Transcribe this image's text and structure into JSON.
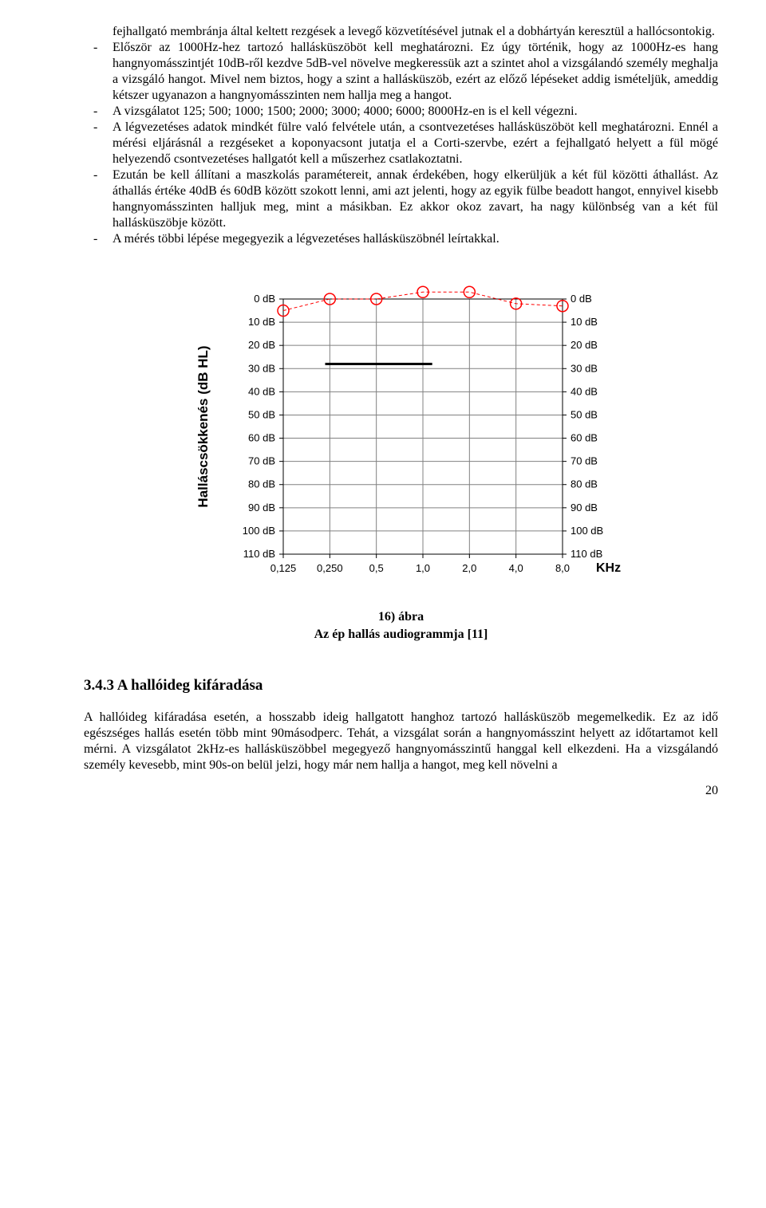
{
  "paragraphs": {
    "cont0": "fejhallgató membránja által keltett rezgések a levegő közvetítésével jutnak el a dobhártyán keresztül a hallócsontokig.",
    "b1": "Először az 1000Hz-hez tartozó hallásküszöböt kell meghatározni. Ez úgy történik, hogy az 1000Hz-es hang hangnyomásszintjét 10dB-ről kezdve 5dB-vel növelve megkeressük azt a szintet ahol a vizsgálandó személy meghalja a vizsgáló hangot. Mivel nem biztos, hogy a szint a hallásküszöb, ezért az előző lépéseket addig ismételjük, ameddig kétszer ugyanazon a hangnyomásszinten nem hallja meg a hangot.",
    "b2": "A vizsgálatot 125; 500; 1000; 1500; 2000; 3000; 4000; 6000; 8000Hz-en is el kell végezni.",
    "b3": "A légvezetéses adatok mindkét fülre való felvétele után, a csontvezetéses hallásküszöböt kell meghatározni. Ennél a mérési eljárásnál a rezgéseket a koponyacsont jutatja el a Corti-szervbe, ezért a fejhallgató helyett a fül mögé helyezendő csontvezetéses hallgatót kell a műszerhez csatlakoztatni.",
    "b4": "Ezután be kell állítani a maszkolás paramétereit, annak érdekében, hogy elkerüljük a két fül közötti áthallást. Az áthallás értéke 40dB és 60dB között szokott lenni, ami azt jelenti, hogy az egyik fülbe beadott hangot, ennyivel kisebb hangnyomásszinten halljuk meg, mint a másikban. Ez akkor okoz zavart, ha nagy különbség van a két fül hallásküszöbje között.",
    "b5": "A mérés többi lépése megegyezik a légvezetéses hallásküszöbnél leírtakkal."
  },
  "figure": {
    "caption_line1": "16) ábra",
    "caption_line2": "Az ép hallás audiogrammja [11]",
    "ylabel": "Halláscsökkenés (dB HL)",
    "xlabel": "KHz",
    "x_ticks": [
      "0,125",
      "0,250",
      "0,5",
      "1,0",
      "2,0",
      "4,0",
      "8,0"
    ],
    "y_ticks_left": [
      "0 dB",
      "10 dB",
      "20 dB",
      "30 dB",
      "40 dB",
      "50 dB",
      "60 dB",
      "70 dB",
      "80 dB",
      "90 dB",
      "100 dB",
      "110 dB"
    ],
    "y_ticks_right": [
      "0 dB",
      "10 dB",
      "20 dB",
      "30 dB",
      "40 dB",
      "50 dB",
      "60 dB",
      "70 dB",
      "80 dB",
      "90 dB",
      "100 dB",
      "110 dB"
    ],
    "grid_color": "#808080",
    "axis_color": "#000000",
    "bg_color": "#ffffff",
    "series": {
      "color": "#ff0000",
      "marker": "circle-open",
      "marker_size": 7,
      "line_width": 1,
      "points": [
        {
          "xi": 0,
          "y_db": 5
        },
        {
          "xi": 1,
          "y_db": 0
        },
        {
          "xi": 2,
          "y_db": 0
        },
        {
          "xi": 3,
          "y_db": -3
        },
        {
          "xi": 4,
          "y_db": -3
        },
        {
          "xi": 5,
          "y_db": 2
        },
        {
          "xi": 6,
          "y_db": 3
        }
      ]
    },
    "threshold_bar": {
      "from_xi": 0.9,
      "to_xi": 3.2,
      "y_db": 28,
      "color": "#000000",
      "height": 3
    }
  },
  "section": {
    "number": "3.4.3",
    "title": "A hallóideg kifáradása"
  },
  "body_after": "A hallóideg kifáradása esetén, a hosszabb ideig hallgatott hanghoz tartozó hallásküszöb megemelkedik. Ez az idő egészséges hallás esetén több mint 90másodperc. Tehát, a vizsgálat során a hangnyomásszint helyett az időtartamot kell mérni. A vizsgálatot 2kHz-es hallásküszöbbel megegyező hangnyomásszintű hanggal kell elkezdeni. Ha a vizsgálandó személy kevesebb, mint 90s-on belül jelzi, hogy már nem hallja a hangot, meg kell növelni a",
  "page_number": "20"
}
